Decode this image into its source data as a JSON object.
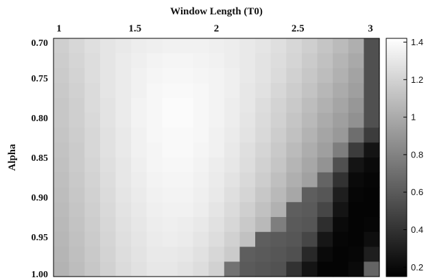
{
  "chart_data": {
    "type": "heatmap",
    "title": "",
    "xlabel": "Window Length (T0)",
    "ylabel": "Alpha",
    "x_ticks": [
      "1",
      "1.5",
      "2",
      "2.5",
      "3"
    ],
    "x_tick_values": [
      1,
      1.5,
      2,
      2.5,
      3
    ],
    "y_ticks": [
      "0.70",
      "0.75",
      "0.80",
      "0.85",
      "0.90",
      "0.95",
      "1.00"
    ],
    "y_tick_values": [
      0.7,
      0.75,
      0.8,
      0.85,
      0.9,
      0.95,
      1.0
    ],
    "xlim": [
      1,
      3
    ],
    "ylim": [
      0.7,
      1.0
    ],
    "x_axis_position": "top",
    "y_axis_inverted": true,
    "colormap": "gray",
    "colorbar_ticks": [
      "0.2",
      "0.4",
      "0.6",
      "0.8",
      "1",
      "1.2",
      "1.4"
    ],
    "colorbar_tick_values": [
      0.2,
      0.4,
      0.6,
      0.8,
      1.0,
      1.2,
      1.4
    ],
    "clim": [
      0.15,
      1.42
    ],
    "n_cols": 21,
    "n_rows": 16,
    "z": [
      [
        1.18,
        1.22,
        1.26,
        1.29,
        1.31,
        1.33,
        1.34,
        1.35,
        1.35,
        1.35,
        1.34,
        1.33,
        1.31,
        1.29,
        1.26,
        1.22,
        1.18,
        1.13,
        1.08,
        1.02,
        0.55
      ],
      [
        1.17,
        1.21,
        1.25,
        1.29,
        1.32,
        1.34,
        1.36,
        1.37,
        1.37,
        1.36,
        1.35,
        1.33,
        1.31,
        1.28,
        1.25,
        1.21,
        1.16,
        1.11,
        1.05,
        0.99,
        0.55
      ],
      [
        1.16,
        1.2,
        1.25,
        1.29,
        1.32,
        1.35,
        1.37,
        1.38,
        1.38,
        1.37,
        1.36,
        1.34,
        1.31,
        1.28,
        1.24,
        1.19,
        1.14,
        1.09,
        1.03,
        0.96,
        0.55
      ],
      [
        1.15,
        1.19,
        1.24,
        1.29,
        1.32,
        1.35,
        1.38,
        1.39,
        1.39,
        1.38,
        1.36,
        1.34,
        1.3,
        1.27,
        1.22,
        1.17,
        1.12,
        1.06,
        1.0,
        0.94,
        0.55
      ],
      [
        1.14,
        1.18,
        1.24,
        1.28,
        1.32,
        1.36,
        1.38,
        1.4,
        1.4,
        1.38,
        1.36,
        1.33,
        1.3,
        1.25,
        1.2,
        1.15,
        1.09,
        1.03,
        0.97,
        0.9,
        0.55
      ],
      [
        1.14,
        1.18,
        1.23,
        1.28,
        1.32,
        1.36,
        1.38,
        1.4,
        1.4,
        1.38,
        1.36,
        1.33,
        1.29,
        1.24,
        1.19,
        1.13,
        1.07,
        1.0,
        0.94,
        0.87,
        0.55
      ],
      [
        1.13,
        1.17,
        1.22,
        1.27,
        1.31,
        1.35,
        1.38,
        1.39,
        1.39,
        1.38,
        1.35,
        1.32,
        1.28,
        1.23,
        1.17,
        1.11,
        1.04,
        0.97,
        0.91,
        0.7,
        0.45
      ],
      [
        1.12,
        1.16,
        1.22,
        1.27,
        1.31,
        1.35,
        1.37,
        1.39,
        1.39,
        1.37,
        1.35,
        1.31,
        1.26,
        1.21,
        1.15,
        1.08,
        1.01,
        0.94,
        0.78,
        0.45,
        0.25
      ],
      [
        1.11,
        1.16,
        1.21,
        1.26,
        1.3,
        1.34,
        1.37,
        1.38,
        1.38,
        1.36,
        1.33,
        1.3,
        1.25,
        1.19,
        1.13,
        1.05,
        0.98,
        0.88,
        0.55,
        0.25,
        0.2
      ],
      [
        1.1,
        1.15,
        1.2,
        1.25,
        1.3,
        1.33,
        1.36,
        1.37,
        1.37,
        1.35,
        1.32,
        1.28,
        1.23,
        1.17,
        1.1,
        1.02,
        0.95,
        0.65,
        0.4,
        0.2,
        0.18
      ],
      [
        1.09,
        1.14,
        1.19,
        1.24,
        1.29,
        1.32,
        1.35,
        1.36,
        1.36,
        1.34,
        1.31,
        1.26,
        1.21,
        1.14,
        1.07,
        0.98,
        0.62,
        0.58,
        0.3,
        0.18,
        0.17
      ],
      [
        1.08,
        1.13,
        1.18,
        1.23,
        1.28,
        1.31,
        1.34,
        1.35,
        1.35,
        1.33,
        1.29,
        1.24,
        1.18,
        1.11,
        1.03,
        0.62,
        0.6,
        0.5,
        0.25,
        0.17,
        0.17
      ],
      [
        1.07,
        1.12,
        1.17,
        1.22,
        1.27,
        1.3,
        1.33,
        1.34,
        1.33,
        1.31,
        1.27,
        1.22,
        1.15,
        1.07,
        0.78,
        0.6,
        0.58,
        0.38,
        0.2,
        0.17,
        0.18
      ],
      [
        1.06,
        1.11,
        1.16,
        1.21,
        1.26,
        1.29,
        1.32,
        1.33,
        1.32,
        1.29,
        1.25,
        1.19,
        1.11,
        0.62,
        0.6,
        0.58,
        0.5,
        0.26,
        0.18,
        0.17,
        0.22
      ],
      [
        1.05,
        1.1,
        1.15,
        1.2,
        1.25,
        1.28,
        1.31,
        1.31,
        1.3,
        1.27,
        1.22,
        1.16,
        0.62,
        0.6,
        0.58,
        0.55,
        0.35,
        0.2,
        0.17,
        0.18,
        0.3
      ],
      [
        1.04,
        1.09,
        1.14,
        1.19,
        1.24,
        1.27,
        1.3,
        1.3,
        1.28,
        1.25,
        1.19,
        0.72,
        0.6,
        0.58,
        0.56,
        0.4,
        0.25,
        0.17,
        0.17,
        0.2,
        0.65
      ]
    ]
  }
}
